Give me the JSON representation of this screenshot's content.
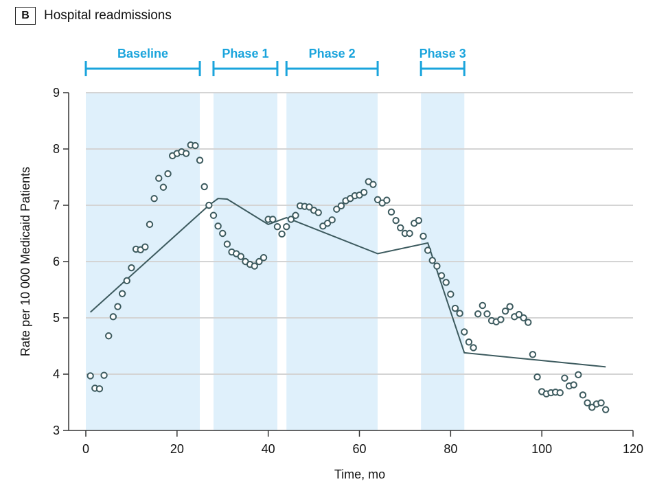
{
  "panel": {
    "letter": "B",
    "title": "Hospital readmissions"
  },
  "colors": {
    "shade": "#dff0fb",
    "phase_bar": "#1aa4dc",
    "gridline": "#d4d4d4",
    "marker": "#3c5a5e",
    "trend": "#3c5a5e",
    "axis": "#333333"
  },
  "chart_data": {
    "type": "scatter",
    "xlabel": "Time, mo",
    "ylabel": "Rate per 10 000 Medicaid Patients",
    "xlim": [
      0,
      120
    ],
    "ylim": [
      3,
      9
    ],
    "x_ticks": [
      0,
      20,
      40,
      60,
      80,
      100,
      120
    ],
    "y_ticks": [
      3,
      4,
      5,
      6,
      7,
      8,
      9
    ],
    "grid": "horizontal",
    "phases": [
      {
        "label": "Baseline",
        "start": 0,
        "end": 25
      },
      {
        "label": "Phase 1",
        "start": 28,
        "end": 42
      },
      {
        "label": "Phase 2",
        "start": 44,
        "end": 64
      },
      {
        "label": "Phase 3",
        "start": 73.5,
        "end": 83
      }
    ],
    "observed": {
      "x": [
        1,
        2,
        3,
        4,
        5,
        6,
        7,
        8,
        9,
        10,
        11,
        12,
        13,
        14,
        15,
        16,
        17,
        18,
        19,
        20,
        21,
        22,
        23,
        24,
        25,
        26,
        27,
        28,
        29,
        30,
        31,
        32,
        33,
        34,
        35,
        36,
        37,
        38,
        39,
        40,
        41,
        42,
        43,
        44,
        45,
        46,
        47,
        48,
        49,
        50,
        51,
        52,
        53,
        54,
        55,
        56,
        57,
        58,
        59,
        60,
        61,
        62,
        63,
        64,
        65,
        66,
        67,
        68,
        69,
        70,
        71,
        72,
        73,
        74,
        75,
        76,
        77,
        78,
        79,
        80,
        81,
        82,
        83,
        84,
        85,
        86,
        87,
        88,
        89,
        90,
        91,
        92,
        93,
        94,
        95,
        96,
        97,
        98,
        99,
        100,
        101,
        102,
        103,
        104,
        105,
        106,
        107,
        108,
        109,
        110,
        111,
        112,
        113,
        114
      ],
      "y": [
        3.97,
        3.75,
        3.74,
        3.98,
        4.68,
        5.02,
        5.2,
        5.43,
        5.66,
        5.89,
        6.22,
        6.21,
        6.26,
        6.66,
        7.12,
        7.48,
        7.32,
        7.56,
        7.88,
        7.92,
        7.95,
        7.92,
        8.07,
        8.06,
        7.8,
        7.33,
        7.0,
        6.82,
        6.63,
        6.5,
        6.31,
        6.17,
        6.14,
        6.09,
        6.0,
        5.95,
        5.92,
        6.0,
        6.07,
        6.75,
        6.75,
        6.62,
        6.49,
        6.62,
        6.75,
        6.82,
        6.99,
        6.98,
        6.97,
        6.91,
        6.87,
        6.63,
        6.68,
        6.74,
        6.93,
        6.99,
        7.08,
        7.12,
        7.17,
        7.18,
        7.23,
        7.42,
        7.37,
        7.1,
        7.04,
        7.09,
        6.88,
        6.73,
        6.6,
        6.5,
        6.5,
        6.68,
        6.73,
        6.45,
        6.2,
        6.02,
        5.92,
        5.75,
        5.63,
        5.42,
        5.17,
        5.08,
        4.75,
        4.57,
        4.47,
        5.07,
        5.22,
        5.07,
        4.95,
        4.93,
        4.97,
        5.12,
        5.2,
        5.02,
        5.06,
        5.0,
        4.92,
        4.35,
        3.95,
        3.69,
        3.65,
        3.67,
        3.68,
        3.67,
        3.93,
        3.79,
        3.81,
        3.99,
        3.63,
        3.49,
        3.41,
        3.47,
        3.49,
        3.37
      ]
    },
    "trend": {
      "x": [
        1,
        27,
        29,
        31,
        40,
        44,
        64,
        75,
        83,
        114
      ],
      "y": [
        5.1,
        7.0,
        7.12,
        7.11,
        6.66,
        6.78,
        6.14,
        6.33,
        4.38,
        4.13
      ]
    }
  }
}
